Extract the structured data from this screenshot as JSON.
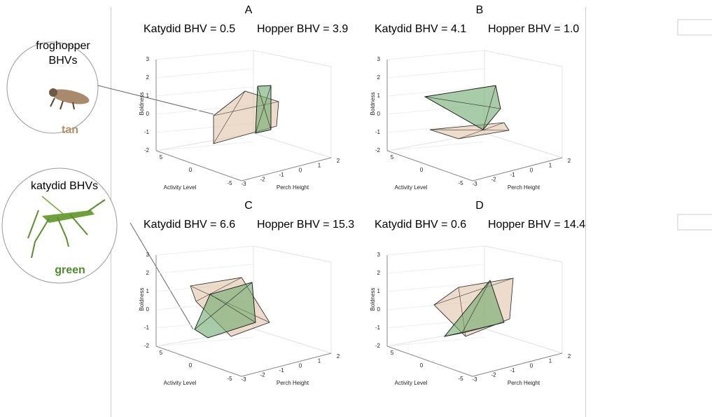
{
  "legend": [
    {
      "label_lines": [
        "froghopper",
        "BHVs"
      ],
      "color_word": "tan"
    },
    {
      "label_lines": [
        "katydid BHVs"
      ],
      "color_word": "green"
    }
  ],
  "panels": [
    {
      "letter": "A",
      "katydid": "Katydid BHV = 0.5",
      "hopper": "Hopper BHV = 3.9"
    },
    {
      "letter": "B",
      "katydid": "Katydid BHV = 4.1",
      "hopper": "Hopper BHV = 1.0"
    },
    {
      "letter": "C",
      "katydid": "Katydid BHV = 6.6",
      "hopper": "Hopper BHV = 15.3"
    },
    {
      "letter": "D",
      "katydid": "Katydid BHV = 0.6",
      "hopper": "Hopper BHV = 14.4"
    }
  ],
  "axes": {
    "z_label": "Boldness",
    "x_label": "Activity Level",
    "y_label": "Perch Height",
    "z_ticks": [
      3,
      2,
      1,
      0,
      -1,
      -2
    ],
    "x_ticks": [
      5,
      0,
      -5
    ],
    "y_ticks": [
      -3,
      -2,
      -1,
      0,
      1,
      2
    ]
  }
}
